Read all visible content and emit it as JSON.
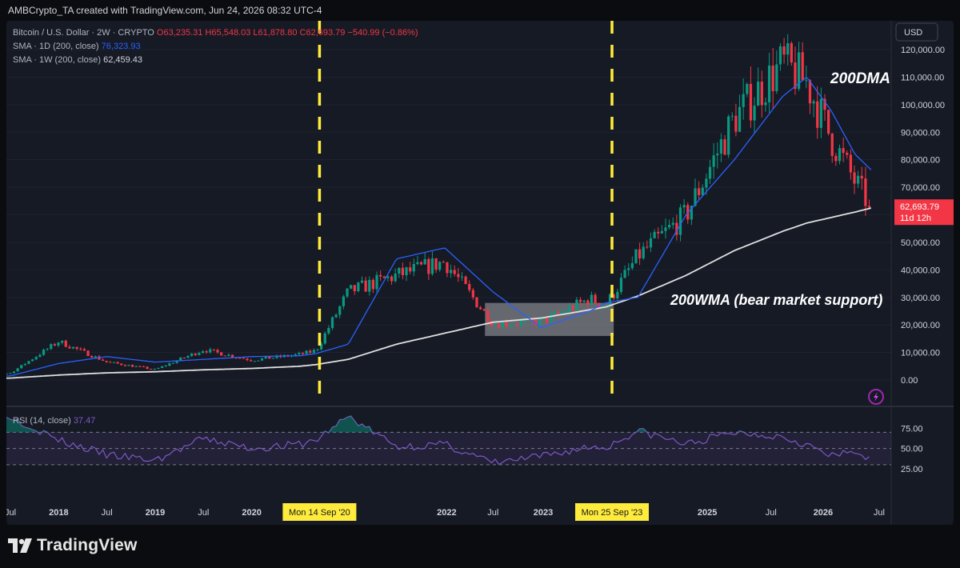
{
  "header": {
    "caption": "AMBCrypto_TA created with TradingView.com, Jun 24, 2026 08:32 UTC-4"
  },
  "legend": {
    "symbol": "Bitcoin / U.S. Dollar · 2W · CRYPTO",
    "ohlc": "O63,235.31 H65,548.03 L61,878.80 C62,693.79 −540.99 (−0.86%)",
    "sma1_label": "SMA · 1D (200, close)",
    "sma1_value": "76,323.93",
    "sma2_label": "SMA · 1W (200, close)",
    "sma2_value": "62,459.43",
    "rsi_label": "RSI (14, close)",
    "rsi_value": "37.47"
  },
  "price_axis": {
    "currency": "USD",
    "ticks": [
      "120,000.00",
      "110,000.00",
      "100,000.00",
      "90,000.00",
      "80,000.00",
      "70,000.00",
      "60,000.00",
      "50,000.00",
      "40,000.00",
      "30,000.00",
      "20,000.00",
      "10,000.00",
      "0.00"
    ],
    "last_price": "62,693.79",
    "countdown": "11d 12h"
  },
  "rsi_axis": {
    "ticks": [
      "75.00",
      "50.00",
      "25.00"
    ]
  },
  "time_axis": {
    "ticks": [
      "Jul",
      "2018",
      "Jul",
      "2019",
      "Jul",
      "2020",
      "Jul",
      "2022",
      "Jul",
      "2023",
      "Jul",
      "2025",
      "Jul",
      "2026",
      "Jul"
    ],
    "markers": [
      "Mon 14 Sep '20",
      "Mon 25 Sep '23"
    ]
  },
  "annotations": {
    "dma": "200DMA",
    "wma": "200WMA (bear market support)"
  },
  "colors": {
    "up": "#089981",
    "down": "#f23645",
    "sma1": "#2962ff",
    "sma2": "#e0e0e0",
    "rsi": "#7e57c2",
    "marker": "#ffeb3b",
    "panel": "#161a25"
  },
  "icons": {
    "logo": "tradingview-logo-icon",
    "alert": "lightning-alert-icon"
  },
  "brand": "TradingView",
  "chart_data": [
    {
      "type": "candlestick",
      "title": "Bitcoin / U.S. Dollar · 2W · CRYPTO",
      "ylim": [
        0,
        125000
      ],
      "x": [
        "2017-01",
        "2017-07",
        "2018-01",
        "2018-07",
        "2019-01",
        "2019-07",
        "2020-01",
        "2020-07",
        "2020-09",
        "2021-01",
        "2021-07",
        "2022-01",
        "2022-07",
        "2023-01",
        "2023-07",
        "2023-09",
        "2024-01",
        "2024-07",
        "2025-01",
        "2025-07",
        "2025-10",
        "2026-01",
        "2026-04",
        "2026-06"
      ],
      "close": [
        1000,
        2500,
        14000,
        6500,
        3800,
        11000,
        7200,
        9300,
        10700,
        32000,
        38000,
        43000,
        20500,
        21000,
        29500,
        27000,
        45000,
        60000,
        95000,
        115000,
        108000,
        88000,
        72000,
        62693.79
      ],
      "series": [
        {
          "name": "SMA · 1D (200, close)",
          "values": [
            900,
            1500,
            6000,
            8500,
            6500,
            7500,
            8500,
            8800,
            9600,
            13000,
            44000,
            48000,
            32000,
            19000,
            25000,
            28000,
            30000,
            60000,
            80000,
            103000,
            110000,
            98000,
            82000,
            76323.93
          ]
        },
        {
          "name": "SMA · 1W (200, close)",
          "values": [
            300,
            700,
            1800,
            2600,
            3000,
            3700,
            4200,
            5000,
            5600,
            7500,
            13000,
            17000,
            21000,
            22500,
            25500,
            26500,
            30500,
            38000,
            47000,
            54000,
            57000,
            59000,
            61000,
            62459.43
          ]
        }
      ],
      "markers": [
        {
          "x": "2020-09-14",
          "label": "Mon 14 Sep '20"
        },
        {
          "x": "2023-09-25",
          "label": "Mon 25 Sep '23"
        }
      ],
      "highlight_range": {
        "x": [
          "2022-06",
          "2023-10"
        ],
        "y": [
          16000,
          28000
        ]
      }
    },
    {
      "type": "line",
      "title": "RSI (14, close)",
      "ylim": [
        15,
        95
      ],
      "x": [
        "2017-01",
        "2017-07",
        "2018-01",
        "2018-07",
        "2019-01",
        "2019-07",
        "2020-01",
        "2020-07",
        "2020-09",
        "2021-01",
        "2021-07",
        "2022-01",
        "2022-07",
        "2023-01",
        "2023-07",
        "2023-09",
        "2024-01",
        "2024-07",
        "2025-01",
        "2025-07",
        "2025-10",
        "2026-01",
        "2026-04",
        "2026-06"
      ],
      "series": [
        {
          "name": "RSI (14, close)",
          "values": [
            70,
            90,
            60,
            42,
            35,
            62,
            50,
            55,
            60,
            90,
            52,
            55,
            32,
            40,
            52,
            51,
            72,
            55,
            70,
            65,
            55,
            40,
            46,
            37.47
          ]
        }
      ],
      "bands": [
        70,
        50,
        30
      ]
    }
  ]
}
